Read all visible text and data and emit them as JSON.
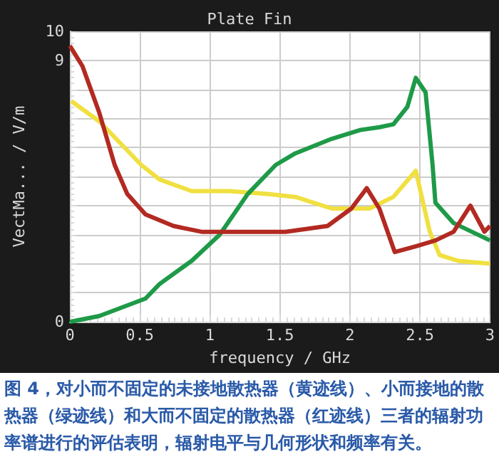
{
  "chart_data": {
    "type": "line",
    "title": "Plate Fin",
    "xlabel": "frequency / GHz",
    "ylabel": "VectMa... / V/m",
    "annotations": [
      "图 4，对小而不固定的未接地散热器（黄迹线）、小而接地的散热器（绿迹线）和大而不固定的散热器（红迹线）三者的辐射功率谱进行的评估表明，辐射电平与几何形状和频率有关。"
    ],
    "xlim": [
      0,
      3
    ],
    "xticks": [
      0,
      0.5,
      1,
      1.5,
      2,
      2.5,
      3
    ],
    "ylim": [
      0,
      10
    ],
    "yticks": [
      0,
      {
        "value": 1,
        "label": null
      },
      {
        "value": 2,
        "label": null
      },
      {
        "value": 3,
        "label": null
      },
      {
        "value": 4,
        "label": null
      },
      {
        "value": 5,
        "label": null
      },
      {
        "value": 6,
        "label": null
      },
      {
        "value": 7,
        "label": null
      },
      {
        "value": 8,
        "label": null
      },
      9,
      10
    ],
    "grid": true,
    "marker": "none",
    "line_style": "solid",
    "series": [
      {
        "color": "#f0e040",
        "x": [
          0.01,
          0.21,
          0.51,
          0.64,
          0.87,
          1.14,
          1.41,
          1.61,
          1.87,
          2.14,
          2.31,
          2.47,
          2.57,
          2.64,
          2.77,
          3.0
        ],
        "values": [
          7.6,
          6.9,
          5.4,
          4.9,
          4.5,
          4.5,
          4.4,
          4.3,
          3.9,
          3.9,
          4.3,
          5.2,
          3.1,
          2.3,
          2.1,
          2.0
        ]
      },
      {
        "color": "#1e9a48",
        "x": [
          0,
          0.21,
          0.54,
          0.64,
          0.87,
          1.07,
          1.27,
          1.47,
          1.61,
          1.87,
          2.07,
          2.21,
          2.31,
          2.41,
          2.47,
          2.54,
          2.59,
          2.61,
          2.74,
          3.0
        ],
        "values": [
          0,
          0.2,
          0.8,
          1.3,
          2.1,
          3.0,
          4.4,
          5.4,
          5.8,
          6.3,
          6.6,
          6.7,
          6.8,
          7.4,
          8.4,
          7.9,
          5.4,
          4.1,
          3.4,
          2.8
        ]
      },
      {
        "color": "#b22a22",
        "x": [
          0,
          0.09,
          0.21,
          0.32,
          0.41,
          0.54,
          0.74,
          0.94,
          1.14,
          1.54,
          1.84,
          2.01,
          2.12,
          2.21,
          2.32,
          2.47,
          2.61,
          2.74,
          2.86,
          2.96,
          3.0
        ],
        "values": [
          9.5,
          8.8,
          7.2,
          5.4,
          4.4,
          3.7,
          3.3,
          3.1,
          3.1,
          3.1,
          3.3,
          3.9,
          4.6,
          3.9,
          2.4,
          2.6,
          2.8,
          3.1,
          4.0,
          3.1,
          3.3
        ]
      }
    ]
  }
}
